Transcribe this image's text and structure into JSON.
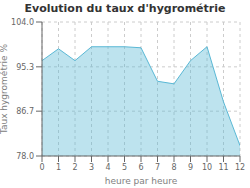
{
  "chart_data": {
    "type": "area",
    "title": "Evolution du taux d'hygrométrie",
    "xlabel": "heure par heure",
    "ylabel": "Taux hygrométrie %",
    "x": [
      0,
      1,
      2,
      3,
      4,
      5,
      6,
      7,
      8,
      9,
      10,
      11,
      12
    ],
    "values": [
      96.5,
      98.8,
      96.5,
      99.2,
      99.2,
      99.2,
      99.0,
      92.5,
      92.0,
      96.5,
      99.2,
      88.5,
      80.0
    ],
    "xlim": [
      0,
      12
    ],
    "ylim": [
      78.0,
      104.0
    ],
    "xticks": [
      0,
      1,
      2,
      3,
      4,
      5,
      6,
      7,
      8,
      9,
      10,
      11,
      12
    ],
    "yticks": [
      {
        "value": 78.0,
        "label": "78.0"
      },
      86.7,
      95.3,
      {
        "value": 104.0,
        "label": "104.0"
      }
    ],
    "color": "#5ab8d5",
    "grid": true
  }
}
